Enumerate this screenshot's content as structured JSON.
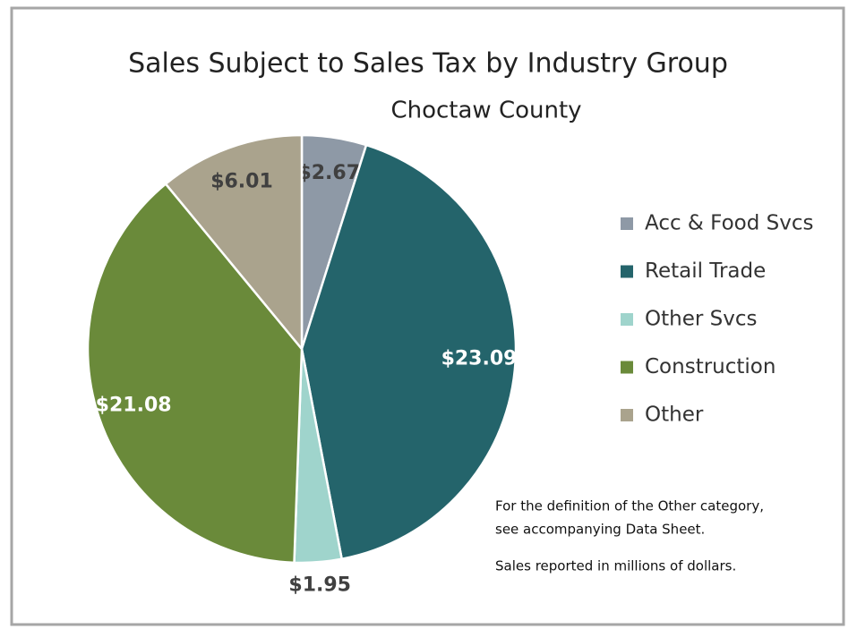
{
  "chart_data": {
    "type": "pie",
    "title": "Sales Subject to Sales Tax by Industry Group",
    "subtitle": "Choctaw County",
    "categories": [
      "Acc & Food Svcs",
      "Retail Trade",
      "Other Svcs",
      "Construction",
      "Other"
    ],
    "values": [
      2.67,
      23.09,
      1.95,
      21.08,
      6.01
    ],
    "value_labels": [
      "$2.67",
      "$23.09",
      "$1.95",
      "$21.08",
      "$6.01"
    ],
    "colors": [
      "#8e99a6",
      "#24646b",
      "#9fd4cc",
      "#6a8a3a",
      "#aaa38d"
    ],
    "legend": "right",
    "annotations": [
      "For the definition of the Other category,",
      "see accompanying Data Sheet.",
      "Sales reported in millions of dollars."
    ]
  }
}
